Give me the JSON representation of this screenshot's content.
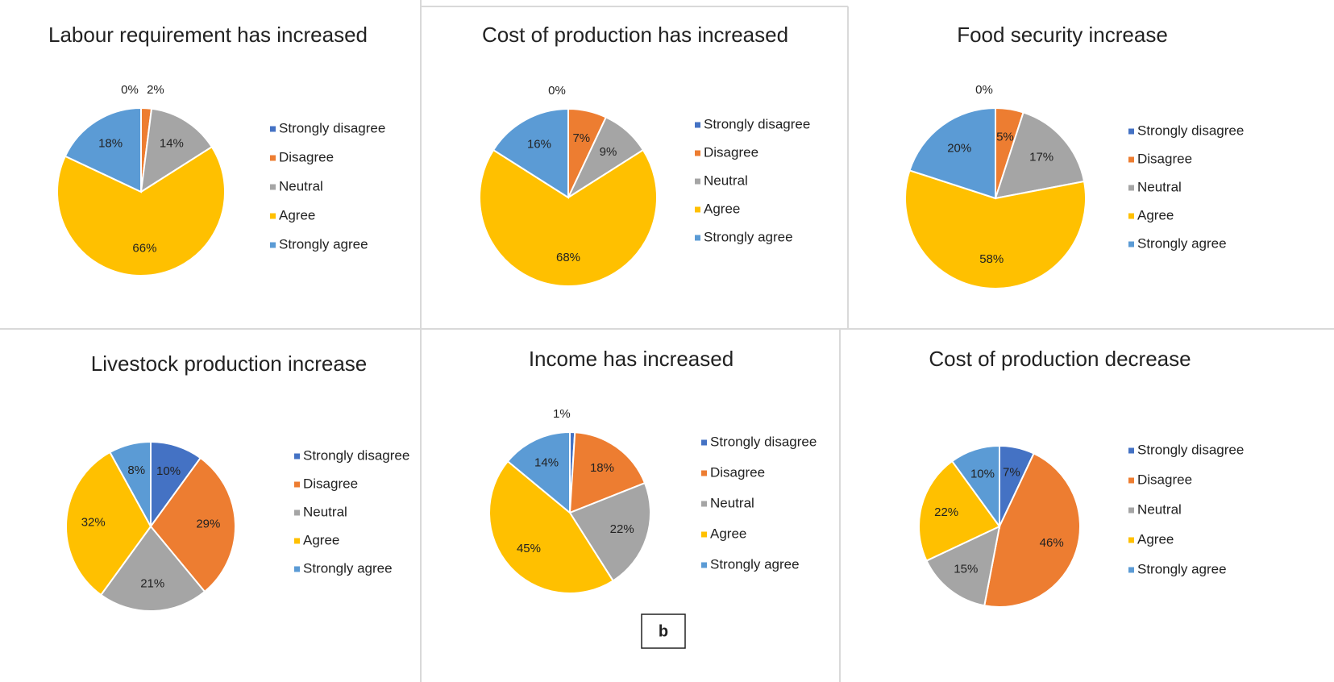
{
  "chart_data": [
    {
      "type": "pie",
      "title": "Labour requirement has increased",
      "categories": [
        "Strongly disagree",
        "Disagree",
        "Neutral",
        "Agree",
        "Strongly agree"
      ],
      "values": [
        0,
        2,
        14,
        66,
        18
      ],
      "value_labels": [
        "0%",
        "2%",
        "14%",
        "66%",
        "18%"
      ],
      "colors": [
        "#4472c4",
        "#ed7d31",
        "#a5a5a5",
        "#ffc000",
        "#5b9bd5"
      ]
    },
    {
      "type": "pie",
      "title": "Cost of  production has increased",
      "categories": [
        "Strongly disagree",
        "Disagree",
        "Neutral",
        "Agree",
        "Strongly agree"
      ],
      "values": [
        0,
        7,
        9,
        68,
        16
      ],
      "value_labels": [
        "0%",
        "7%",
        "9%",
        "68%",
        "16%"
      ],
      "colors": [
        "#4472c4",
        "#ed7d31",
        "#a5a5a5",
        "#ffc000",
        "#5b9bd5"
      ]
    },
    {
      "type": "pie",
      "title": "Food security increase",
      "categories": [
        "Strongly disagree",
        "Disagree",
        "Neutral",
        "Agree",
        "Strongly agree"
      ],
      "values": [
        0,
        5,
        17,
        58,
        20
      ],
      "value_labels": [
        "0%",
        "5%",
        "17%",
        "58%",
        "20%"
      ],
      "colors": [
        "#4472c4",
        "#ed7d31",
        "#a5a5a5",
        "#ffc000",
        "#5b9bd5"
      ]
    },
    {
      "type": "pie",
      "title": "Livestock production increase",
      "categories": [
        "Strongly disagree",
        "Disagree",
        "Neutral",
        "Agree",
        "Strongly agree"
      ],
      "values": [
        10,
        29,
        21,
        32,
        8
      ],
      "value_labels": [
        "10%",
        "29%",
        "21%",
        "32%",
        "8%"
      ],
      "colors": [
        "#4472c4",
        "#ed7d31",
        "#a5a5a5",
        "#ffc000",
        "#5b9bd5"
      ]
    },
    {
      "type": "pie",
      "title": "Income  has increased",
      "categories": [
        "Strongly disagree",
        "Disagree",
        "Neutral",
        "Agree",
        "Strongly agree"
      ],
      "values": [
        1,
        18,
        22,
        45,
        14
      ],
      "value_labels": [
        "1%",
        "18%",
        "22%",
        "45%",
        "14%"
      ],
      "colors": [
        "#4472c4",
        "#ed7d31",
        "#a5a5a5",
        "#ffc000",
        "#5b9bd5"
      ]
    },
    {
      "type": "pie",
      "title": "Cost of production decrease",
      "categories": [
        "Strongly disagree",
        "Disagree",
        "Neutral",
        "Agree",
        "Strongly agree"
      ],
      "values": [
        7,
        46,
        15,
        22,
        10
      ],
      "value_labels": [
        "7%",
        "46%",
        "15%",
        "22%",
        "10%"
      ],
      "colors": [
        "#4472c4",
        "#ed7d31",
        "#a5a5a5",
        "#ffc000",
        "#5b9bd5"
      ]
    }
  ],
  "panel_label": "b"
}
